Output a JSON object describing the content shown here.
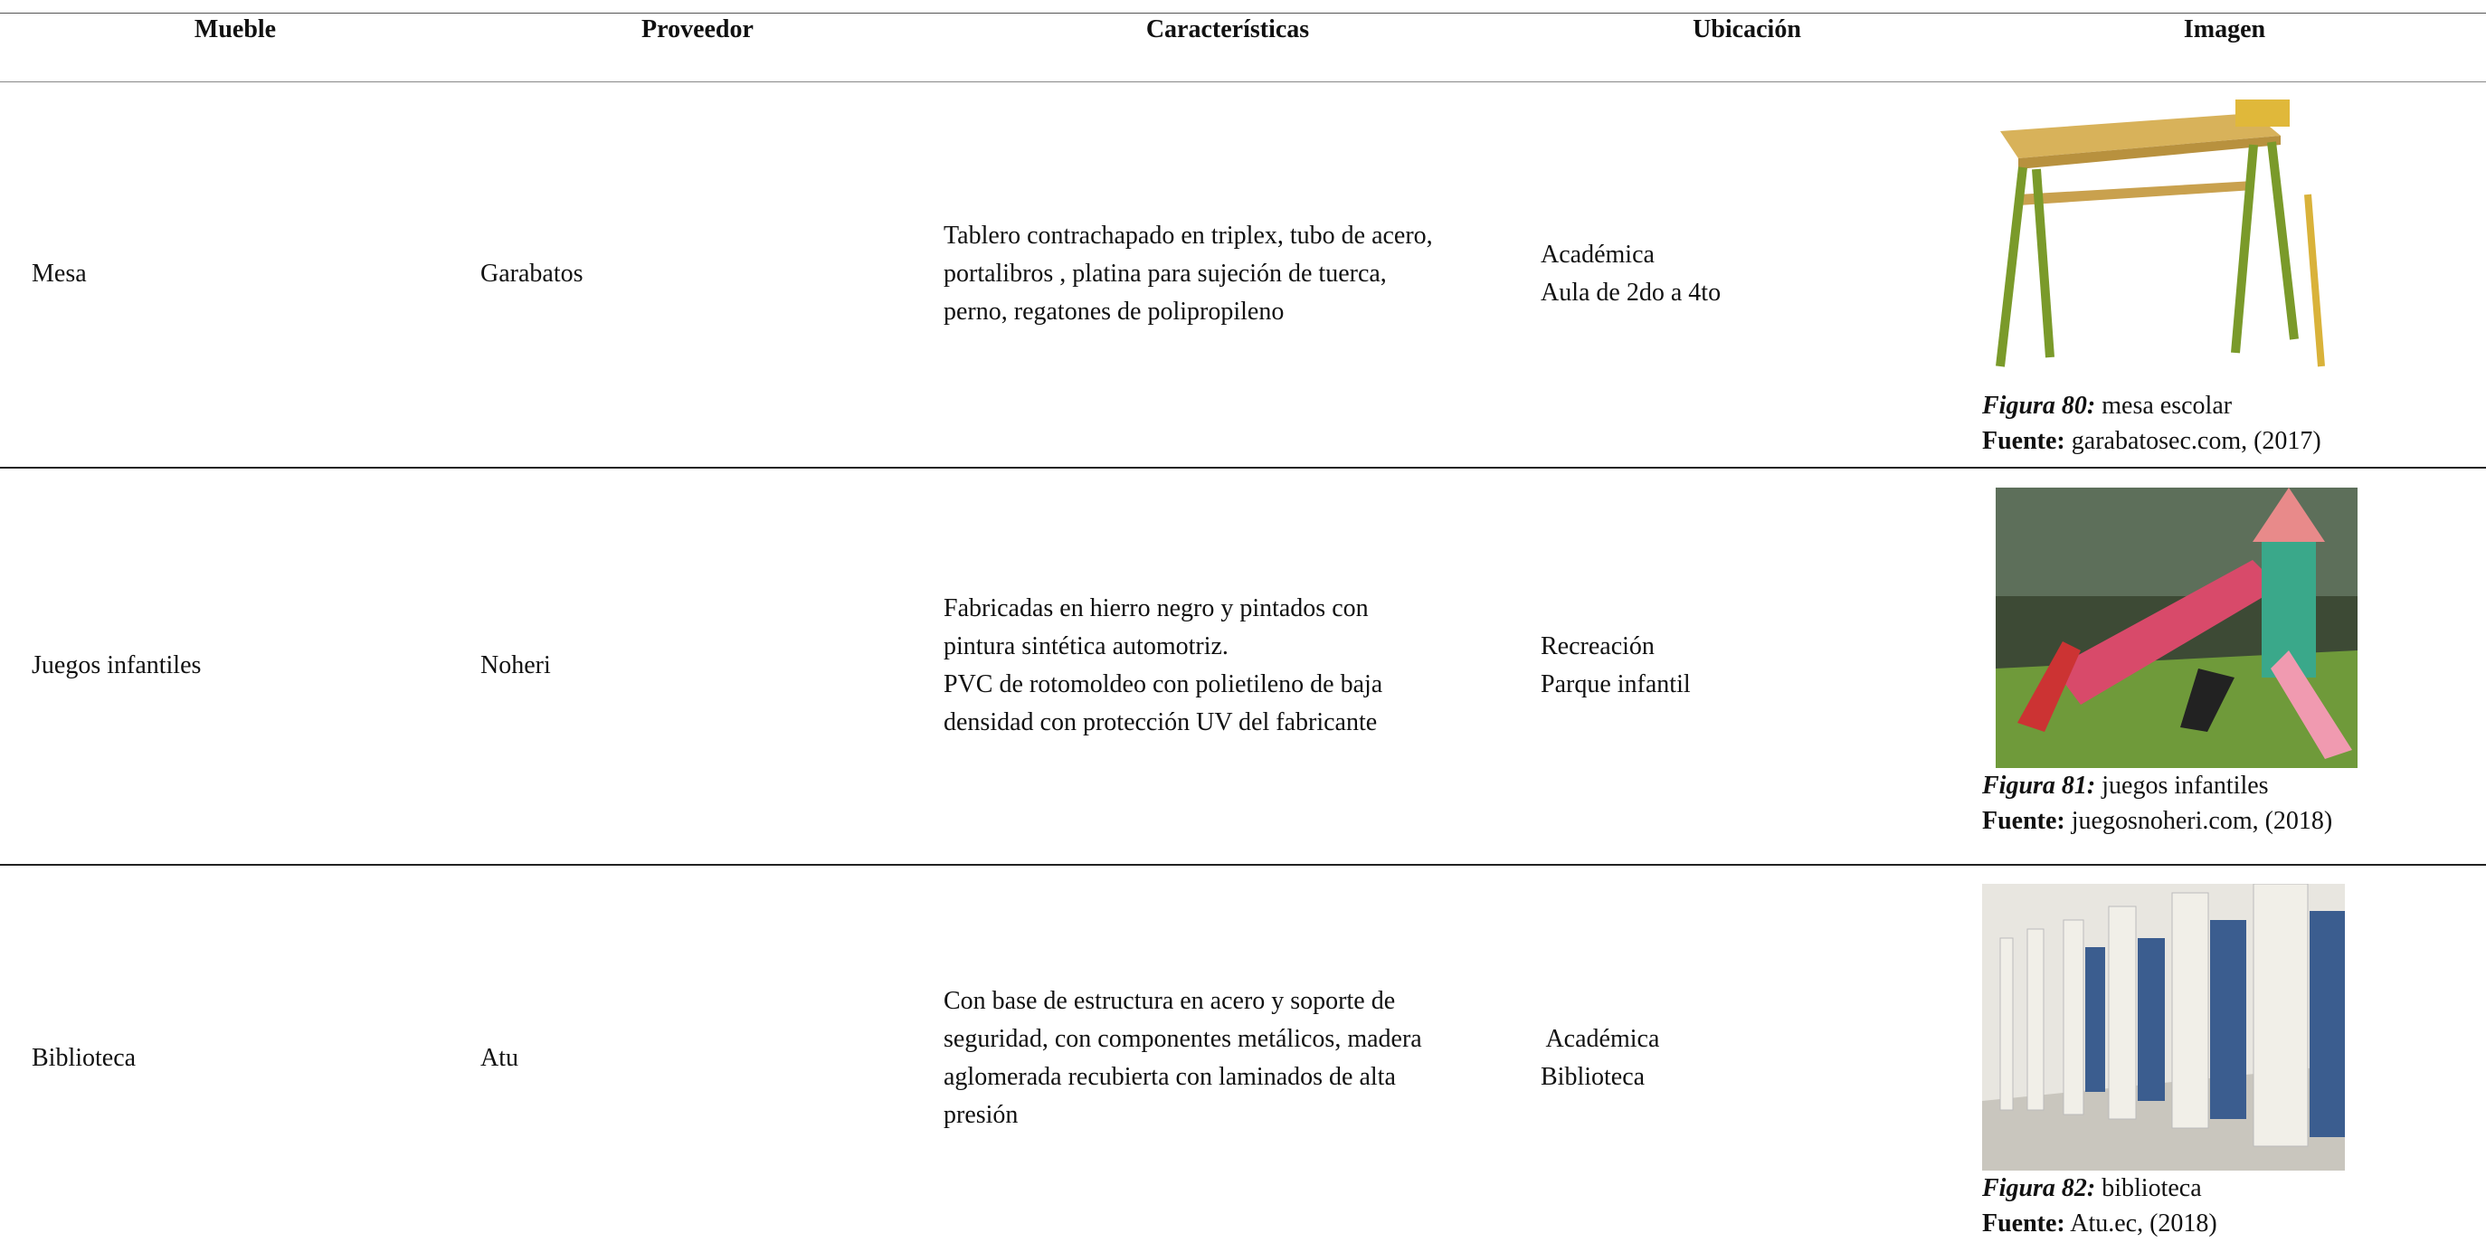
{
  "table": {
    "headers": [
      "Mueble",
      "Proveedor",
      "Características",
      "Ubicación",
      "Imagen"
    ],
    "rows": [
      {
        "mueble": "Mesa",
        "proveedor": "Garabatos",
        "caracteristicas": [
          "Tablero contrachapado en triplex, tubo de acero,",
          "portalibros , platina para sujeción de tuerca,",
          "perno, regatones de polipropileno"
        ],
        "ubicacion": [
          "Académica",
          "Aula de 2do a 4to"
        ],
        "figure_label": "Figura 80:",
        "figure_text": " mesa escolar",
        "source_label": "Fuente:",
        "source_text": " garabatosec.com, (2017)"
      },
      {
        "mueble": "Juegos infantiles",
        "proveedor": "Noheri",
        "caracteristicas": [
          "Fabricadas en hierro negro y pintados con",
          "pintura sintética automotriz.",
          "PVC de rotomoldeo con polietileno de baja",
          "densidad con protección UV del fabricante"
        ],
        "ubicacion": [
          "Recreación",
          "Parque infantil"
        ],
        "figure_label": "Figura 81:",
        "figure_text": " juegos infantiles",
        "source_label": "Fuente:",
        "source_text": " juegosnoheri.com, (2018)"
      },
      {
        "mueble": "Biblioteca",
        "proveedor": "Atu",
        "caracteristicas": [
          "Con base de estructura en acero y soporte de",
          "seguridad, con componentes metálicos, madera",
          "aglomerada recubierta con laminados de alta",
          "presión"
        ],
        "ubicacion": [
          " Académica",
          "Biblioteca"
        ],
        "figure_label": "Figura 82:",
        "figure_text": " biblioteca",
        "source_label": "Fuente:",
        "source_text": " Atu.ec, (2018)"
      }
    ]
  }
}
